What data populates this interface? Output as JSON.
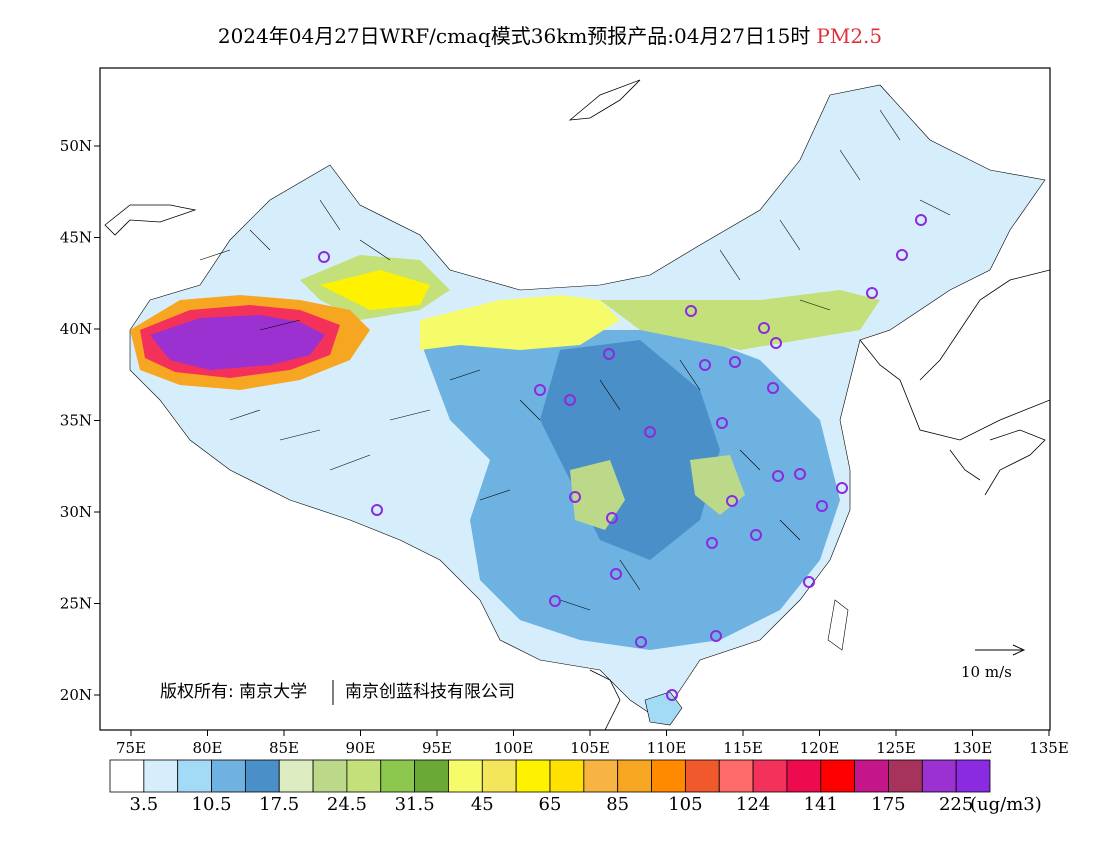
{
  "title": {
    "main": "2024年04月27日WRF/cmaq模式36km预报产品:04月27日15时",
    "variable": "PM2.5"
  },
  "map": {
    "lon_ticks": [
      "75E",
      "80E",
      "85E",
      "90E",
      "95E",
      "100E",
      "105E",
      "110E",
      "115E",
      "120E",
      "125E",
      "130E",
      "135E"
    ],
    "lat_ticks": [
      "20N",
      "25N",
      "30N",
      "35N",
      "40N",
      "45N",
      "50N"
    ],
    "copyright_left": "版权所有: 南京大学",
    "copyright_right": "南京创蓝科技有限公司",
    "wind_reference": "10 m/s",
    "colors": {
      "station_circle": "#8a2be2",
      "highlight": "#e0303a"
    }
  },
  "colorbar": {
    "colors": [
      "#ffffff",
      "#d6eefb",
      "#a3daf5",
      "#6db2e0",
      "#4a8fc7",
      "#deecc2",
      "#bcd98a",
      "#c4e07a",
      "#8cc74e",
      "#6aa935",
      "#f6fb6a",
      "#f3e65a",
      "#fff200",
      "#ffe000",
      "#f7b443",
      "#f7a621",
      "#ff8a00",
      "#f0592b",
      "#ff6a6a",
      "#f4315a",
      "#ee0a4e",
      "#ff0000",
      "#c5158a",
      "#a6335c",
      "#9b31d0",
      "#8a2be2"
    ],
    "labels": [
      "3.5",
      "10.5",
      "17.5",
      "24.5",
      "31.5",
      "45",
      "65",
      "85",
      "105",
      "124",
      "141",
      "175",
      "225"
    ],
    "unit": "(ug/m3)"
  }
}
